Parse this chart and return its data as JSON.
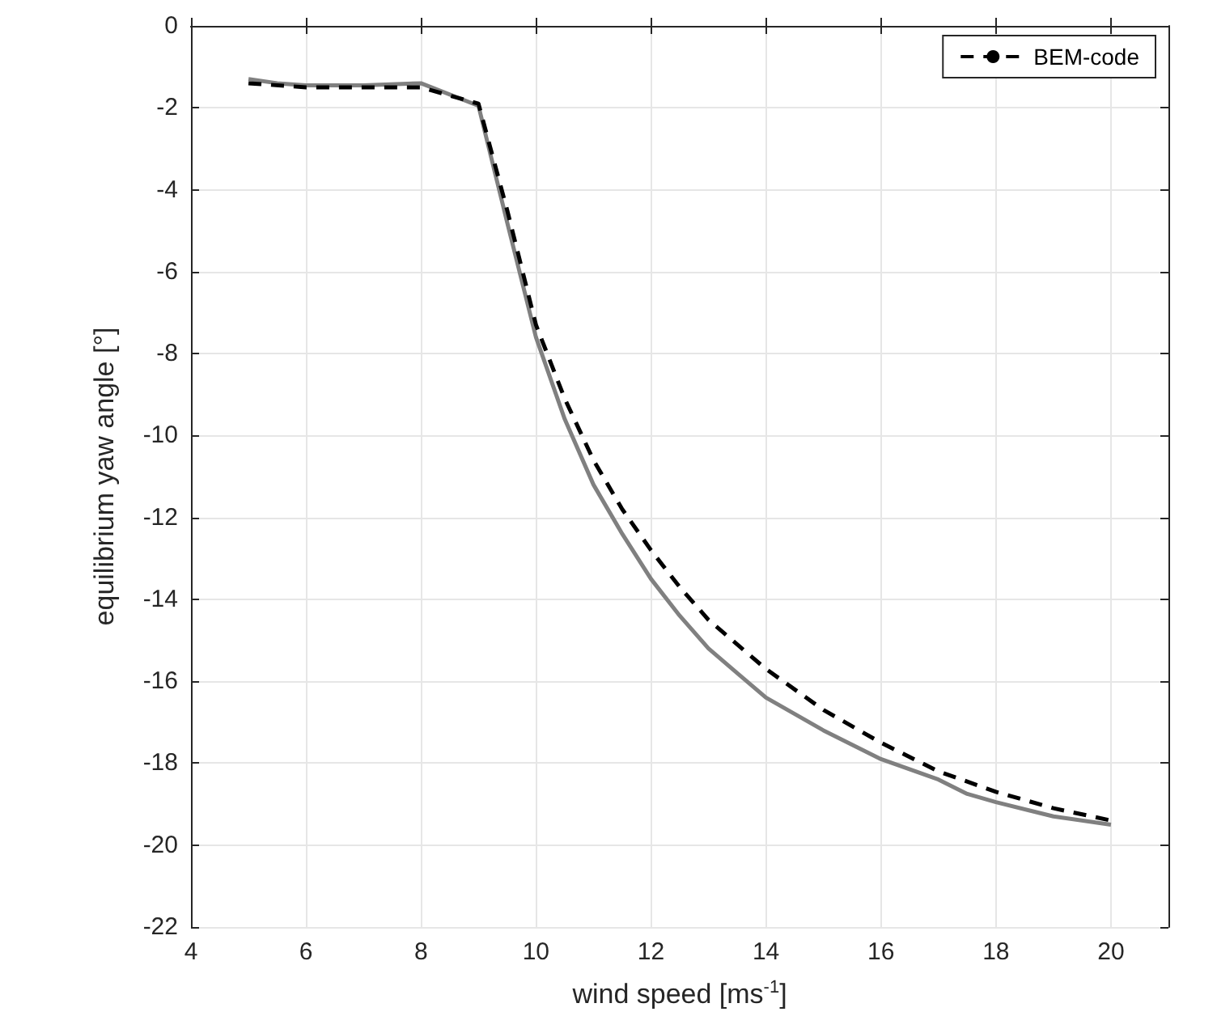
{
  "chart_data": {
    "type": "line",
    "xlabel": "wind speed [ms$^{-1}$]",
    "ylabel": "equilibrium yaw angle [°]",
    "xlim": [
      4,
      21
    ],
    "xticks": [
      4,
      6,
      8,
      10,
      12,
      14,
      16,
      18,
      20
    ],
    "ylim": [
      -22,
      0
    ],
    "yticks": [
      -22,
      -20,
      -18,
      -16,
      -14,
      -12,
      -10,
      -8,
      -6,
      -4,
      -2,
      0
    ],
    "grid": true,
    "legend": "top right",
    "marker": "none",
    "series": [
      {
        "color": "#808080",
        "line_style": "solid",
        "x": [
          5,
          5.5,
          6,
          7,
          8,
          9,
          9.5,
          10,
          10.5,
          11,
          11.5,
          12,
          12.5,
          13,
          13.5,
          14,
          15,
          16,
          17,
          17.5,
          18,
          19,
          20
        ],
        "values": [
          -1.3,
          -1.4,
          -1.45,
          -1.45,
          -1.4,
          -1.95,
          -4.8,
          -7.6,
          -9.6,
          -11.2,
          -12.4,
          -13.5,
          -14.4,
          -15.2,
          -15.8,
          -16.4,
          -17.2,
          -17.9,
          -18.4,
          -18.75,
          -18.95,
          -19.3,
          -19.5
        ]
      },
      {
        "name": "BEM-code",
        "color": "#000000",
        "line_style": "dashed",
        "x": [
          5,
          6,
          7,
          8,
          9,
          9.5,
          10,
          10.5,
          11,
          11.5,
          12,
          12.5,
          13,
          13.5,
          14,
          15,
          16,
          17,
          18,
          19,
          20
        ],
        "values": [
          -1.4,
          -1.5,
          -1.5,
          -1.5,
          -1.9,
          -4.5,
          -7.3,
          -9.1,
          -10.6,
          -11.8,
          -12.8,
          -13.7,
          -14.5,
          -15.1,
          -15.7,
          -16.7,
          -17.5,
          -18.2,
          -18.7,
          -19.1,
          -19.4
        ]
      }
    ]
  }
}
